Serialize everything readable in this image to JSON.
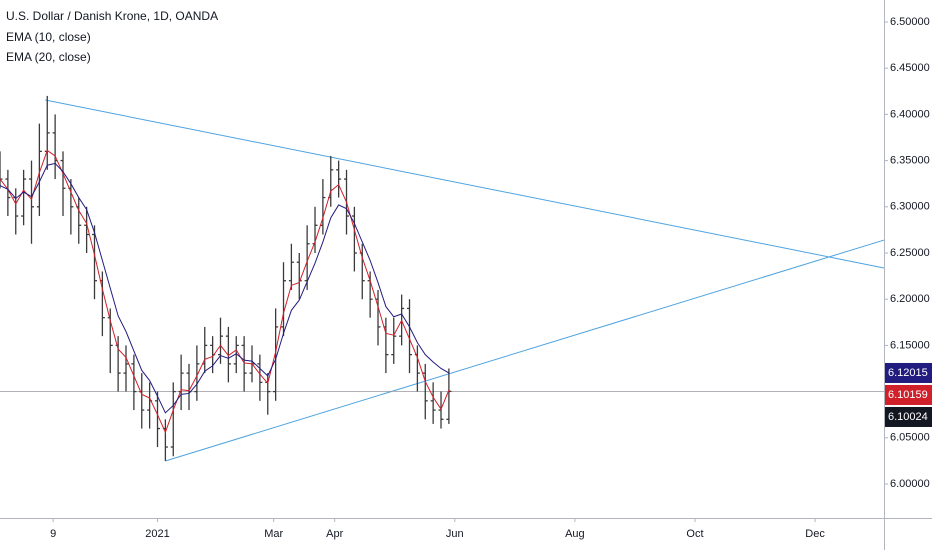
{
  "chart_data": {
    "type": "ohlc",
    "title": "U.S. Dollar / Danish Krone, 1D, OANDA",
    "bar_color": "#3a3a3a",
    "x": [
      -27,
      -23,
      -19,
      -15,
      -11,
      -7,
      -3,
      1,
      5,
      9,
      13,
      17,
      21,
      25,
      29,
      33,
      37,
      41,
      45,
      49,
      53,
      57,
      61,
      65,
      69,
      73,
      77,
      81,
      85,
      89,
      93,
      97,
      101,
      105,
      109,
      113,
      117,
      121,
      125,
      129,
      133,
      137,
      141,
      145,
      149,
      153,
      157,
      161,
      165,
      169,
      173,
      177,
      181,
      185,
      189,
      193,
      197,
      201
    ],
    "candles": [
      [
        6.34,
        6.36,
        6.32,
        6.33
      ],
      [
        6.33,
        6.34,
        6.29,
        6.31
      ],
      [
        6.31,
        6.32,
        6.27,
        6.29
      ],
      [
        6.29,
        6.34,
        6.28,
        6.33
      ],
      [
        6.33,
        6.35,
        6.26,
        6.3
      ],
      [
        6.3,
        6.39,
        6.29,
        6.36
      ],
      [
        6.36,
        6.42,
        6.34,
        6.38
      ],
      [
        6.38,
        6.4,
        6.33,
        6.35
      ],
      [
        6.35,
        6.36,
        6.29,
        6.32
      ],
      [
        6.32,
        6.33,
        6.27,
        6.3
      ],
      [
        6.3,
        6.31,
        6.26,
        6.28
      ],
      [
        6.28,
        6.3,
        6.25,
        6.27
      ],
      [
        6.27,
        6.28,
        6.2,
        6.22
      ],
      [
        6.22,
        6.23,
        6.16,
        6.18
      ],
      [
        6.18,
        6.19,
        6.12,
        6.15
      ],
      [
        6.15,
        6.16,
        6.1,
        6.12
      ],
      [
        6.12,
        6.15,
        6.1,
        6.13
      ],
      [
        6.13,
        6.14,
        6.08,
        6.1
      ],
      [
        6.1,
        6.12,
        6.06,
        6.08
      ],
      [
        6.08,
        6.11,
        6.06,
        6.09
      ],
      [
        6.09,
        6.1,
        6.04,
        6.06
      ],
      [
        6.06,
        6.07,
        6.025,
        6.04
      ],
      [
        6.04,
        6.11,
        6.03,
        6.1
      ],
      [
        6.1,
        6.14,
        6.08,
        6.12
      ],
      [
        6.12,
        6.13,
        6.08,
        6.1
      ],
      [
        6.1,
        6.15,
        6.09,
        6.13
      ],
      [
        6.13,
        6.17,
        6.12,
        6.15
      ],
      [
        6.15,
        6.16,
        6.12,
        6.14
      ],
      [
        6.14,
        6.18,
        6.13,
        6.16
      ],
      [
        6.16,
        6.17,
        6.11,
        6.13
      ],
      [
        6.13,
        6.16,
        6.12,
        6.15
      ],
      [
        6.15,
        6.16,
        6.1,
        6.12
      ],
      [
        6.12,
        6.15,
        6.11,
        6.13
      ],
      [
        6.13,
        6.14,
        6.09,
        6.11
      ],
      [
        6.11,
        6.12,
        6.075,
        6.1
      ],
      [
        6.1,
        6.19,
        6.09,
        6.17
      ],
      [
        6.17,
        6.24,
        6.16,
        6.22
      ],
      [
        6.22,
        6.26,
        6.21,
        6.24
      ],
      [
        6.24,
        6.25,
        6.2,
        6.22
      ],
      [
        6.22,
        6.28,
        6.21,
        6.26
      ],
      [
        6.26,
        6.3,
        6.25,
        6.28
      ],
      [
        6.28,
        6.33,
        6.27,
        6.31
      ],
      [
        6.31,
        6.355,
        6.3,
        6.34
      ],
      [
        6.34,
        6.35,
        6.31,
        6.33
      ],
      [
        6.33,
        6.34,
        6.27,
        6.29
      ],
      [
        6.29,
        6.3,
        6.23,
        6.25
      ],
      [
        6.25,
        6.26,
        6.2,
        6.22
      ],
      [
        6.22,
        6.23,
        6.18,
        6.2
      ],
      [
        6.2,
        6.21,
        6.15,
        6.17
      ],
      [
        6.17,
        6.18,
        6.12,
        6.14
      ],
      [
        6.14,
        6.18,
        6.13,
        6.16
      ],
      [
        6.16,
        6.205,
        6.15,
        6.19
      ],
      [
        6.19,
        6.2,
        6.12,
        6.14
      ],
      [
        6.14,
        6.15,
        6.1,
        6.12
      ],
      [
        6.12,
        6.13,
        6.07,
        6.09
      ],
      [
        6.09,
        6.11,
        6.065,
        6.08
      ],
      [
        6.08,
        6.1,
        6.06,
        6.07
      ],
      [
        6.07,
        6.125,
        6.065,
        6.10024
      ]
    ],
    "series": [
      {
        "name": "EMA (10, close)",
        "color": "#d0202a",
        "values": [
          6.33,
          6.319,
          6.303,
          6.318,
          6.308,
          6.337,
          6.361,
          6.355,
          6.336,
          6.316,
          6.296,
          6.282,
          6.248,
          6.211,
          6.177,
          6.146,
          6.137,
          6.117,
          6.097,
          6.093,
          6.075,
          6.056,
          6.08,
          6.102,
          6.101,
          6.117,
          6.135,
          6.138,
          6.15,
          6.139,
          6.145,
          6.131,
          6.13,
          6.119,
          6.109,
          6.143,
          6.185,
          6.215,
          6.218,
          6.241,
          6.262,
          6.288,
          6.317,
          6.324,
          6.305,
          6.275,
          6.245,
          6.22,
          6.192,
          6.163,
          6.161,
          6.177,
          6.157,
          6.137,
          6.111,
          6.094,
          6.081,
          6.10159
        ]
      },
      {
        "name": "EMA (20, close)",
        "color": "#221c80",
        "values": [
          6.323,
          6.319,
          6.309,
          6.316,
          6.311,
          6.327,
          6.345,
          6.347,
          6.338,
          6.325,
          6.31,
          6.297,
          6.272,
          6.242,
          6.212,
          6.182,
          6.165,
          6.144,
          6.123,
          6.112,
          6.095,
          6.077,
          6.085,
          6.097,
          6.098,
          6.108,
          6.122,
          6.128,
          6.139,
          6.136,
          6.141,
          6.134,
          6.133,
          6.125,
          6.117,
          6.135,
          6.163,
          6.188,
          6.199,
          6.219,
          6.239,
          6.262,
          6.288,
          6.302,
          6.298,
          6.282,
          6.262,
          6.242,
          6.218,
          6.192,
          6.181,
          6.184,
          6.17,
          6.153,
          6.14,
          6.132,
          6.125,
          6.12015
        ]
      }
    ],
    "trendlines": [
      {
        "color": "#4ea3e0",
        "x": [
          -4,
          422
        ],
        "y": [
          6.4156,
          6.2338
        ]
      },
      {
        "color": "#4ea3e0",
        "x": [
          57,
          422
        ],
        "y": [
          6.0249,
          6.264
        ]
      }
    ],
    "price_markers": [
      {
        "value": 6.12015,
        "color": "#221c80"
      },
      {
        "value": 6.10159,
        "color": "#d0202a"
      },
      {
        "value": 6.10024,
        "color": "#131722"
      }
    ],
    "xlim": [
      -27,
      422
    ],
    "xticks": [
      {
        "value": 0,
        "label": "9"
      },
      {
        "value": 53,
        "label": "2021"
      },
      {
        "value": 112,
        "label": "Mar"
      },
      {
        "value": 143,
        "label": "Apr"
      },
      {
        "value": 204,
        "label": "Jun"
      },
      {
        "value": 265,
        "label": "Aug"
      },
      {
        "value": 326,
        "label": "Oct"
      },
      {
        "value": 387,
        "label": "Dec"
      }
    ],
    "ylim": [
      5.9632,
      6.5238
    ],
    "yticks": [
      {
        "value": 6.0,
        "label": "6.00000"
      },
      {
        "value": 6.05,
        "label": "6.05000"
      },
      {
        "value": 6.1,
        "label": "6.10000"
      },
      {
        "value": 6.15,
        "label": "6.15000"
      },
      {
        "value": 6.2,
        "label": "6.20000"
      },
      {
        "value": 6.25,
        "label": "6.25000"
      },
      {
        "value": 6.3,
        "label": "6.30000"
      },
      {
        "value": 6.35,
        "label": "6.35000"
      },
      {
        "value": 6.4,
        "label": "6.40000"
      },
      {
        "value": 6.45,
        "label": "6.45000"
      },
      {
        "value": 6.5,
        "label": "6.50000"
      }
    ]
  }
}
